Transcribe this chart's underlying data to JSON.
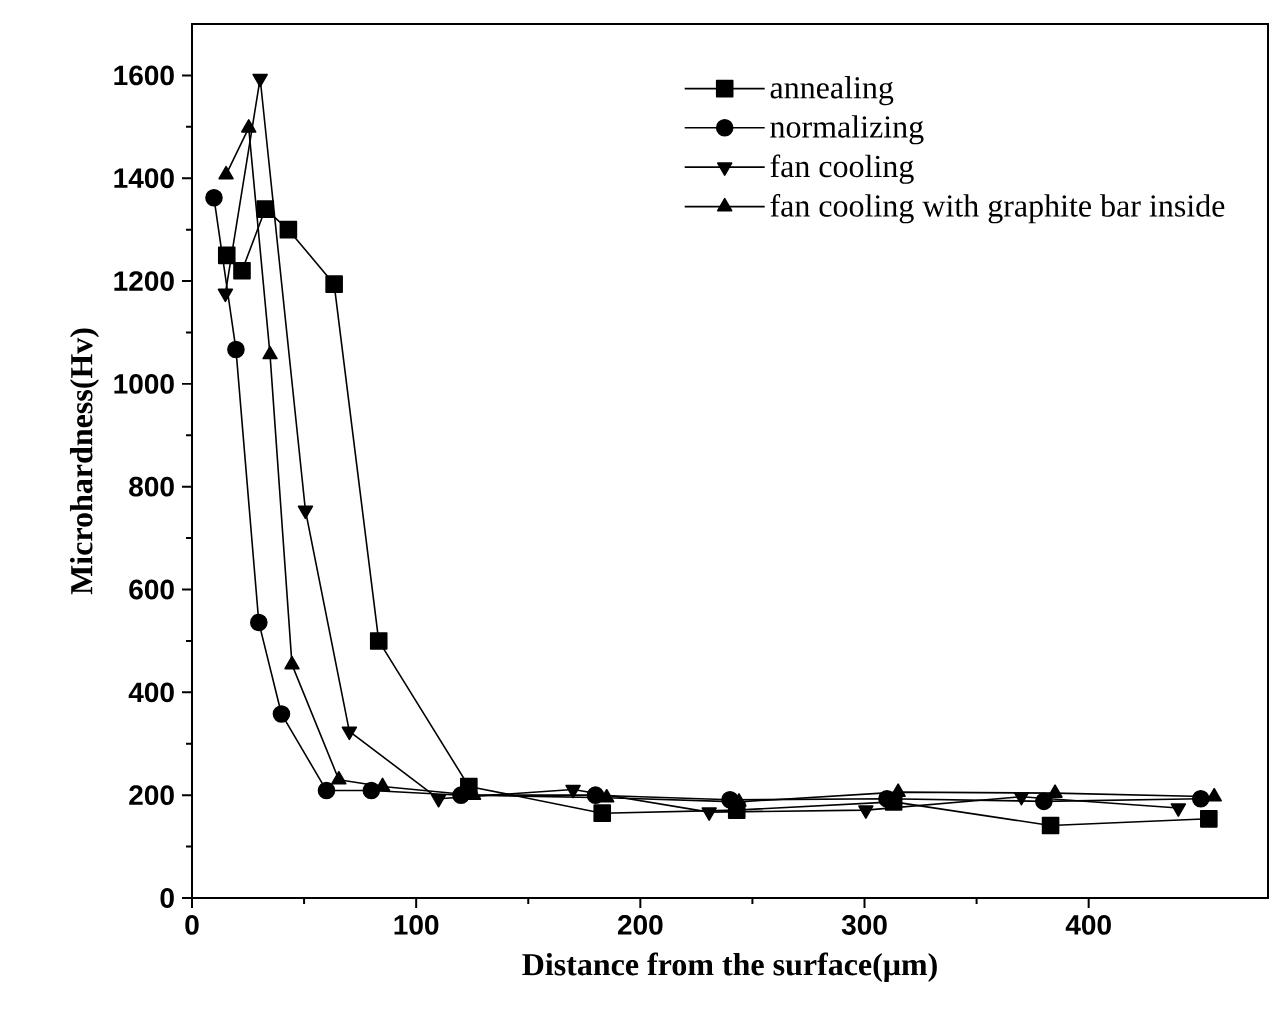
{
  "chart_data": {
    "type": "line",
    "xlabel": "Distance from the surface(μm)",
    "ylabel": "Microhardness(Hv)",
    "xlim": [
      0,
      480
    ],
    "ylim": [
      0,
      1700
    ],
    "xticks": [
      0,
      100,
      200,
      300,
      400
    ],
    "yticks": [
      0,
      200,
      400,
      600,
      800,
      1000,
      1200,
      1400,
      1600
    ],
    "grid": false,
    "legend": "top right",
    "line_style": "solid",
    "series": [
      {
        "name": "annealing",
        "color": "#000000",
        "marker": "square",
        "x": [
          15.5,
          22.3,
          32.7,
          43,
          63.4,
          83.3,
          123.5,
          183,
          243,
          313,
          383,
          453.6
        ],
        "values": [
          1250,
          1220,
          1340,
          1300,
          1194,
          500,
          217,
          165,
          171,
          187,
          141,
          154
        ]
      },
      {
        "name": "normalizing",
        "color": "#000000",
        "marker": "circle",
        "x": [
          9.8,
          19.6,
          29.8,
          39.9,
          60,
          80,
          120,
          180,
          240,
          310,
          380,
          450
        ],
        "values": [
          1362,
          1067,
          536,
          358,
          209,
          209,
          200,
          200,
          191,
          193,
          188,
          193
        ]
      },
      {
        "name": "fan cooling",
        "color": "#000000",
        "marker": "triangle-down",
        "x": [
          14.9,
          30.4,
          50.6,
          70.2,
          110,
          170,
          230.7,
          300.6,
          370,
          440
        ],
        "values": [
          1176,
          1594,
          754,
          324,
          193,
          211,
          167,
          171,
          197,
          175
        ]
      },
      {
        "name": "fan cooling with graphite bar inside",
        "color": "#000000",
        "marker": "triangle",
        "x": [
          15.2,
          25.3,
          34.8,
          44.6,
          65.5,
          85,
          125.6,
          185,
          244,
          315,
          385,
          456
        ],
        "values": [
          1407,
          1498,
          1057,
          454,
          230,
          217,
          200,
          195,
          187,
          206,
          204,
          197
        ]
      }
    ]
  }
}
